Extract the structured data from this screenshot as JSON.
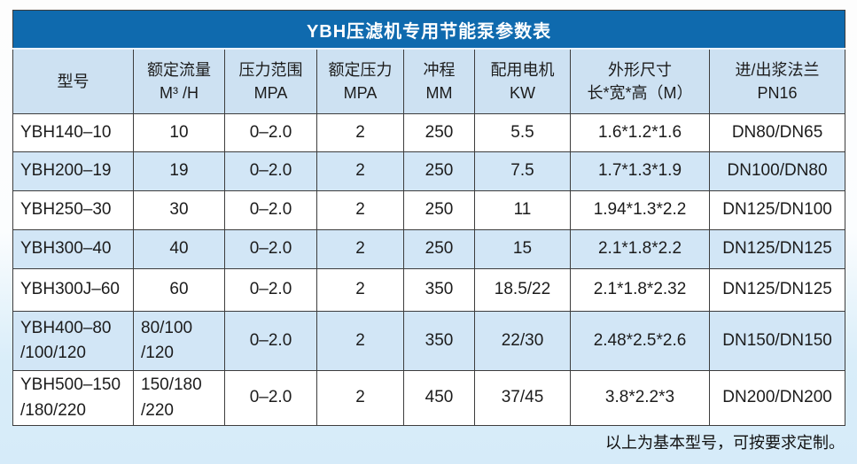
{
  "page": {
    "title": "YBH压滤机专用节能泵参数表",
    "footer_note": "以上为基本型号，可按要求定制。"
  },
  "colors": {
    "title_bar": "#0f6aae",
    "header_bg": "#cde1f2",
    "row_bg": "#ffffff",
    "row_alt_bg": "#d2e6f6",
    "border": "#3d3d3d",
    "page_bg_bottom": "#d6ebf9"
  },
  "table": {
    "column_keys": [
      "model",
      "rated-flow",
      "pressure-range",
      "rated-pressure",
      "stroke",
      "motor-power",
      "dimensions",
      "flange"
    ],
    "headers": [
      "型号",
      "额定流量\nM³ /H",
      "压力范围\nMPA",
      "额定压力\nMPA",
      "冲程\nMM",
      "配用电机\nKW",
      "外形尺寸\n长*宽*高（M）",
      "进/出浆法兰\nPN16"
    ],
    "rows": [
      [
        "YBH140–10",
        "10",
        "0–2.0",
        "2",
        "250",
        "5.5",
        "1.6*1.2*1.6",
        "DN80/DN65"
      ],
      [
        "YBH200–19",
        "19",
        "0–2.0",
        "2",
        "250",
        "7.5",
        "1.7*1.3*1.9",
        "DN100/DN80"
      ],
      [
        "YBH250–30",
        "30",
        "0–2.0",
        "2",
        "250",
        "11",
        "1.94*1.3*2.2",
        "DN125/DN100"
      ],
      [
        "YBH300–40",
        "40",
        "0–2.0",
        "2",
        "250",
        "15",
        "2.1*1.8*2.2",
        "DN125/DN125"
      ],
      [
        "YBH300J–60",
        "60",
        "0–2.0",
        "2",
        "350",
        "18.5/22",
        "2.1*1.8*2.32",
        "DN125/DN125"
      ],
      [
        "YBH400–80\n/100/120",
        "80/100\n/120",
        "0–2.0",
        "2",
        "350",
        "22/30",
        "2.48*2.5*2.6",
        "DN150/DN150"
      ],
      [
        "YBH500–150\n/180/220",
        "150/180\n/220",
        "0–2.0",
        "2",
        "450",
        "37/45",
        "3.8*2.2*3",
        "DN200/DN200"
      ]
    ]
  }
}
